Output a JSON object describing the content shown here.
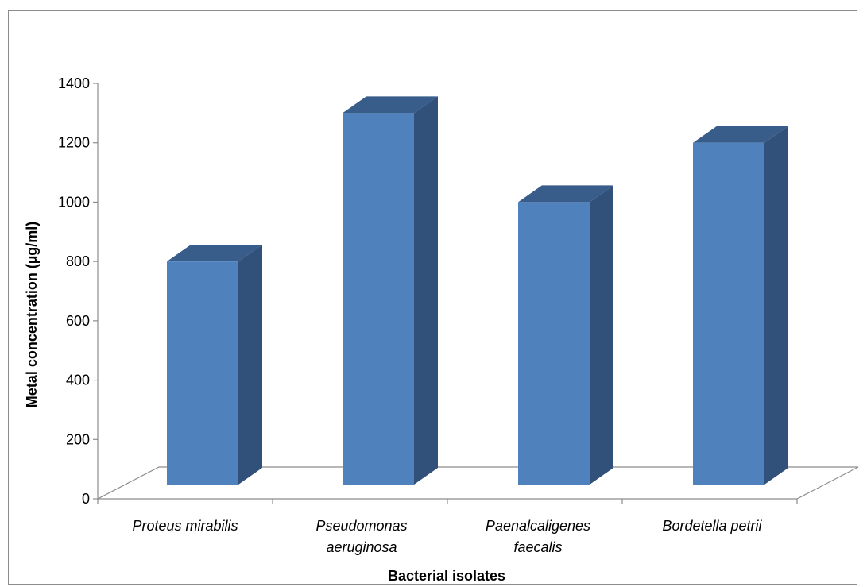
{
  "chart_data": {
    "type": "bar",
    "style": "3d-column",
    "categories": [
      [
        "Proteus mirabilis"
      ],
      [
        "Pseudomonas",
        "aeruginosa"
      ],
      [
        "Paenalcaligenes",
        "faecalis"
      ],
      [
        "Bordetella petrii"
      ]
    ],
    "values": [
      800,
      1300,
      1000,
      1200
    ],
    "title": "",
    "xlabel": "Bacterial isolates",
    "ylabel": "Metal concentration (µg/ml)",
    "ylim": [
      0,
      1400
    ],
    "yticks": [
      "0",
      "200",
      "400",
      "600",
      "800",
      "1000",
      "1200",
      "1400"
    ],
    "grid": false,
    "colors": {
      "front": "#4f81bd",
      "side": "#31507a",
      "top": "#385d8a"
    }
  }
}
